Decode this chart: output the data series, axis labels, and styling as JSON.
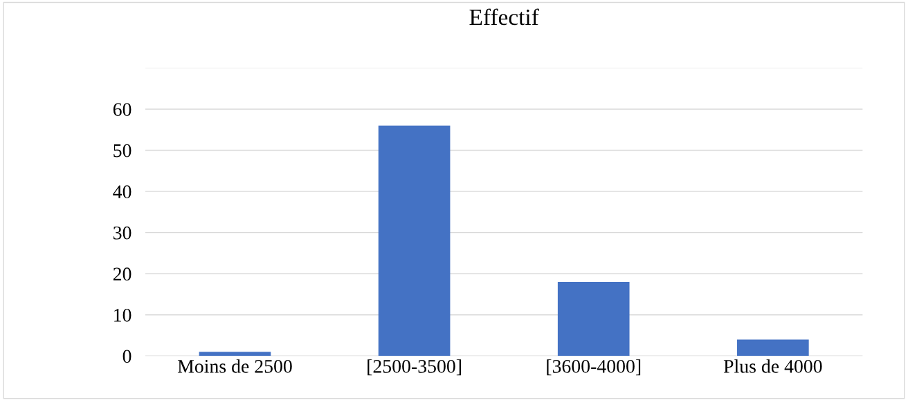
{
  "chart_data": {
    "type": "bar",
    "title": "Effectif",
    "categories": [
      "Moins de 2500",
      "[2500-3500]",
      "[3600-4000]",
      "Plus de 4000"
    ],
    "values": [
      1,
      56,
      18,
      4
    ],
    "color": "#4472c4",
    "ylim": [
      0,
      70
    ],
    "yticks": [
      0,
      10,
      20,
      30,
      40,
      50,
      60,
      {
        "value": 70,
        "label": null
      }
    ],
    "grid": "y"
  }
}
